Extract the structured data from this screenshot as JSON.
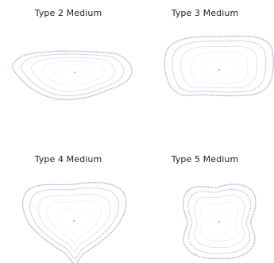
{
  "panels": [
    {
      "id": "type-2",
      "title": "Type 2 Medium"
    },
    {
      "id": "type-3",
      "title": "Type 3 Medium"
    },
    {
      "id": "type-4",
      "title": "Type 4 Medium"
    },
    {
      "id": "type-5",
      "title": "Type 5 Medium"
    }
  ],
  "colors": {
    "contour_outer": "#8f9fc4",
    "contour_inner": "#c4cde3",
    "center_dot": "#7788aa",
    "title_text": "#222222"
  }
}
